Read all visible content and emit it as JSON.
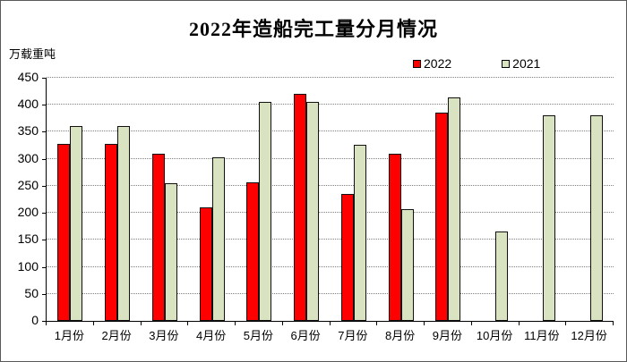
{
  "chart_data": {
    "type": "bar",
    "title": "2022年造船完工量分月情况",
    "unit_label": "万载重吨",
    "categories": [
      "1月份",
      "2月份",
      "3月份",
      "4月份",
      "5月份",
      "6月份",
      "7月份",
      "8月份",
      "9月份",
      "10月份",
      "11月份",
      "12月份"
    ],
    "series": [
      {
        "name": "2022",
        "color": "#FF0000",
        "values": [
          327,
          327,
          309,
          210,
          256,
          421,
          235,
          310,
          386,
          null,
          null,
          null
        ]
      },
      {
        "name": "2021",
        "color": "#D9E3C2",
        "values": [
          361,
          361,
          255,
          302,
          405,
          405,
          326,
          207,
          414,
          165,
          381,
          381
        ]
      }
    ],
    "ylim": [
      0,
      450
    ],
    "ytick_step": 50,
    "grid": "horizontal-dotted",
    "legend_position": "top-right",
    "bar_border_color": "#111111",
    "axis_color": "#000000",
    "gridline_color": "#7f7f7f"
  }
}
